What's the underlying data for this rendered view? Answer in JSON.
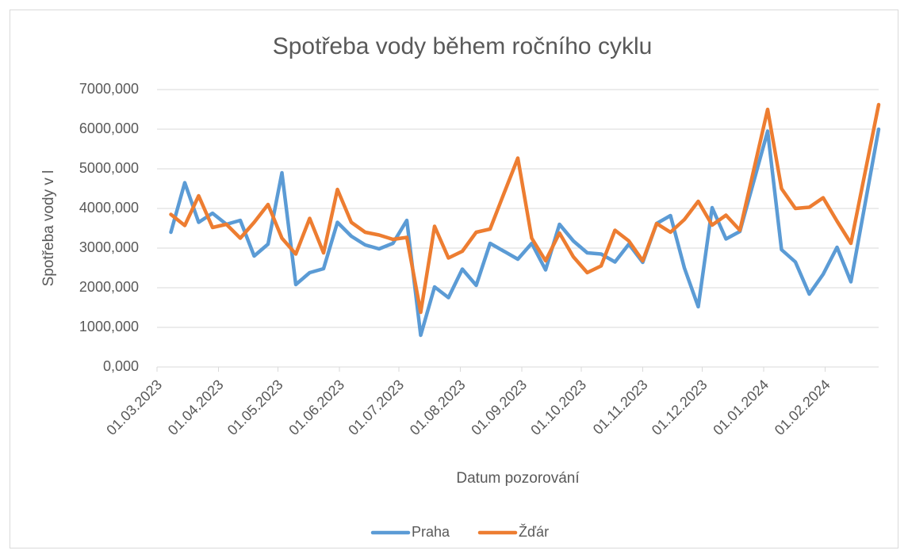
{
  "chart_data": {
    "type": "line",
    "title": "Spotřeba vody během ročního cyklu",
    "x_label": "Datum pozorování",
    "y_label": "Spotřeba vody v l",
    "x": [
      "08.03.2023",
      "15.03.2023",
      "22.03.2023",
      "29.03.2023",
      "05.04.2023",
      "12.04.2023",
      "19.04.2023",
      "26.04.2023",
      "03.05.2023",
      "10.05.2023",
      "17.05.2023",
      "24.05.2023",
      "31.05.2023",
      "07.06.2023",
      "14.06.2023",
      "21.06.2023",
      "28.06.2023",
      "05.07.2023",
      "12.07.2023",
      "19.07.2023",
      "26.07.2023",
      "02.08.2023",
      "09.08.2023",
      "16.08.2023",
      "23.08.2023",
      "30.08.2023",
      "06.09.2023",
      "13.09.2023",
      "20.09.2023",
      "27.09.2023",
      "04.10.2023",
      "11.10.2023",
      "18.10.2023",
      "25.10.2023",
      "01.11.2023",
      "08.11.2023",
      "15.11.2023",
      "22.11.2023",
      "29.11.2023",
      "06.12.2023",
      "13.12.2023",
      "20.12.2023",
      "03.01.2024",
      "10.01.2024",
      "17.01.2024",
      "24.01.2024",
      "31.01.2024",
      "07.02.2024",
      "14.02.2024",
      "28.02.2024"
    ],
    "series": [
      {
        "name": "Praha",
        "color": "#5b9bd5",
        "values": [
          3400,
          4650,
          3650,
          3880,
          3600,
          3700,
          2800,
          3100,
          4900,
          2080,
          2380,
          2480,
          3650,
          3300,
          3080,
          2980,
          3120,
          3700,
          800,
          2020,
          1750,
          2470,
          2060,
          3120,
          2920,
          2720,
          3120,
          2450,
          3600,
          3180,
          2880,
          2850,
          2650,
          3100,
          2640,
          3620,
          3820,
          2500,
          1520,
          4020,
          3230,
          3420,
          5950,
          2960,
          2650,
          1840,
          2340,
          3020,
          2150,
          6000
        ]
      },
      {
        "name": "Žďár",
        "color": "#ed7d31",
        "values": [
          3850,
          3570,
          4320,
          3520,
          3600,
          3250,
          3650,
          4100,
          3250,
          2850,
          3750,
          2880,
          4480,
          3650,
          3400,
          3330,
          3220,
          3270,
          1380,
          3550,
          2750,
          2920,
          3400,
          3480,
          4380,
          5270,
          3250,
          2680,
          3380,
          2780,
          2380,
          2550,
          3450,
          3180,
          2680,
          3620,
          3400,
          3720,
          4180,
          3580,
          3830,
          3450,
          6500,
          4500,
          4000,
          4030,
          4270,
          3680,
          3120,
          6620
        ]
      }
    ],
    "xlim": [
      "01.03.2023",
      "28.02.2024"
    ],
    "xticks": [
      "01.03.2023",
      "01.04.2023",
      "01.05.2023",
      "01.06.2023",
      "01.07.2023",
      "01.08.2023",
      "01.09.2023",
      "01.10.2023",
      "01.11.2023",
      "01.12.2023",
      "01.01.2024",
      "01.02.2024"
    ],
    "ylim": [
      0,
      7000
    ],
    "yticks": [
      {
        "value": 0,
        "label": "0,000"
      },
      {
        "value": 1000,
        "label": "1000,000"
      },
      {
        "value": 2000,
        "label": "2000,000"
      },
      {
        "value": 3000,
        "label": "3000,000"
      },
      {
        "value": 4000,
        "label": "4000,000"
      },
      {
        "value": 5000,
        "label": "5000,000"
      },
      {
        "value": 6000,
        "label": "6000,000"
      },
      {
        "value": 7000,
        "label": "7000,000"
      }
    ],
    "grid": true,
    "legend": "bottom"
  }
}
